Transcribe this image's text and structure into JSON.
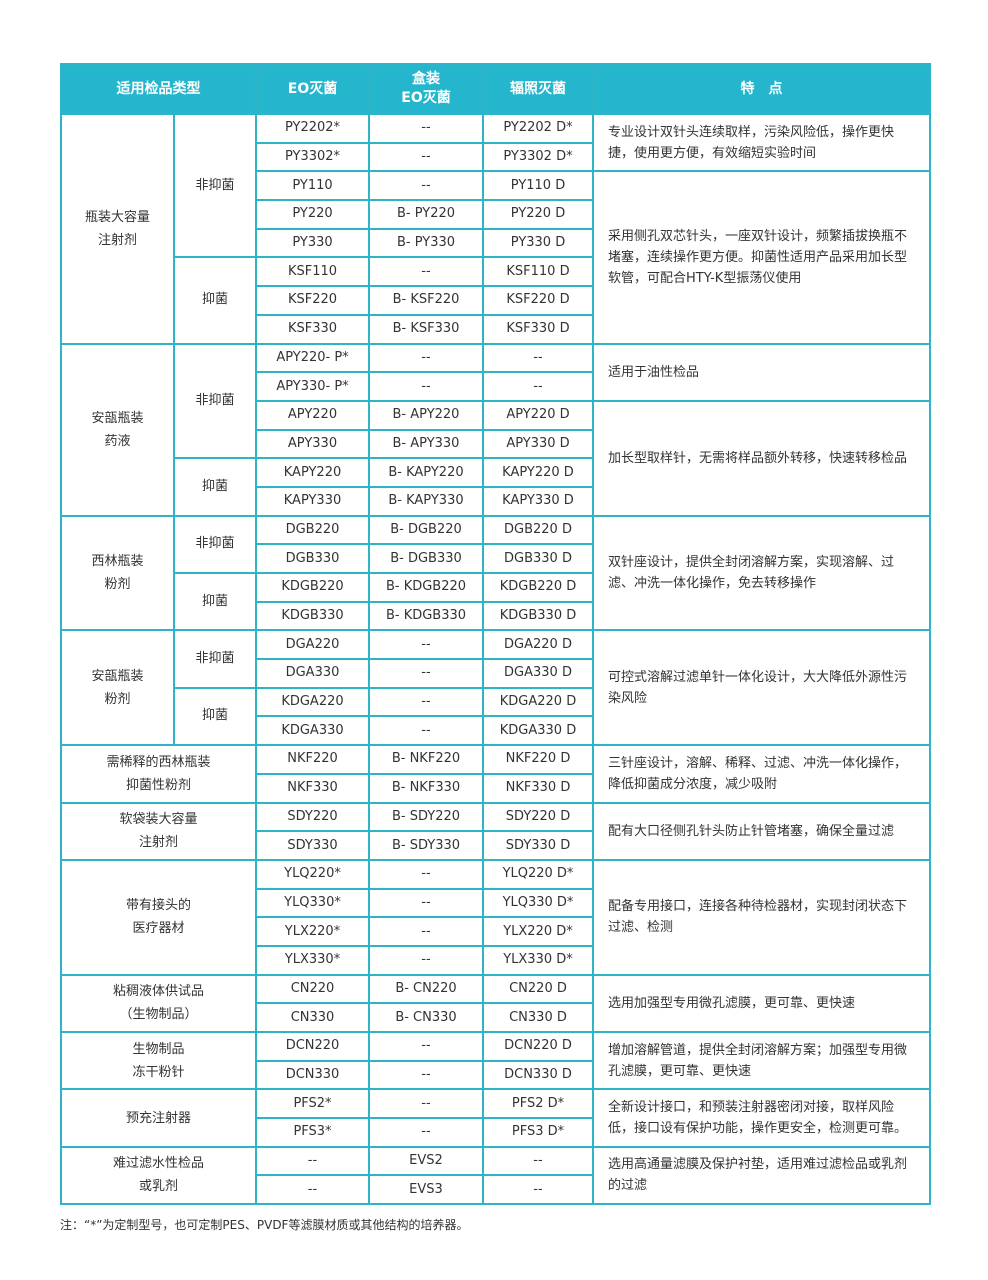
{
  "header": {
    "category": "适用检品类型",
    "eo": "EO灭菌",
    "box_eo_1": "盒装",
    "box_eo_2": "EO灭菌",
    "radiation": "辐照灭菌",
    "features": "特　点"
  },
  "colors": {
    "header_bg": "#25b6cd",
    "border": "#2fb3c6"
  },
  "groups": [
    {
      "category": [
        "瓶装大容量",
        "注射剂"
      ],
      "subs": [
        {
          "label": "非抑菌",
          "span": 5
        },
        {
          "label": "抑菌",
          "span": 3
        }
      ],
      "features": [
        {
          "text": "专业设计双针头连续取样，污染风险低，操作更快捷，使用更方便，有效缩短实验时间",
          "span": 2
        },
        {
          "text": "采用侧孔双芯针头，一座双针设计，频繁插拔换瓶不堵塞，连续操作更方便。抑菌性适用产品采用加长型软管，可配合HTY-K型振荡仪使用",
          "span": 6
        }
      ],
      "rows": [
        [
          "PY2202*",
          "--",
          "PY2202 D*"
        ],
        [
          "PY3302*",
          "--",
          "PY3302 D*"
        ],
        [
          "PY110",
          "--",
          "PY110 D"
        ],
        [
          "PY220",
          "B- PY220",
          "PY220 D"
        ],
        [
          "PY330",
          "B- PY330",
          "PY330 D"
        ],
        [
          "KSF110",
          "--",
          "KSF110 D"
        ],
        [
          "KSF220",
          "B- KSF220",
          "KSF220 D"
        ],
        [
          "KSF330",
          "B- KSF330",
          "KSF330 D"
        ]
      ]
    },
    {
      "category": [
        "安瓿瓶装",
        "药液"
      ],
      "subs": [
        {
          "label": "非抑菌",
          "span": 4
        },
        {
          "label": "抑菌",
          "span": 2
        }
      ],
      "features": [
        {
          "text": "适用于油性检品",
          "span": 2
        },
        {
          "text": "加长型取样针，无需将样品额外转移，快速转移检品",
          "span": 4
        }
      ],
      "rows": [
        [
          "APY220- P*",
          "--",
          "--"
        ],
        [
          "APY330- P*",
          "--",
          "--"
        ],
        [
          "APY220",
          "B- APY220",
          "APY220 D"
        ],
        [
          "APY330",
          "B- APY330",
          "APY330 D"
        ],
        [
          "KAPY220",
          "B- KAPY220",
          "KAPY220 D"
        ],
        [
          "KAPY330",
          "B- KAPY330",
          "KAPY330 D"
        ]
      ]
    },
    {
      "category": [
        "西林瓶装",
        "粉剂"
      ],
      "subs": [
        {
          "label": "非抑菌",
          "span": 2
        },
        {
          "label": "抑菌",
          "span": 2
        }
      ],
      "features": [
        {
          "text": "双针座设计，提供全封闭溶解方案，实现溶解、过滤、冲洗一体化操作，免去转移操作",
          "span": 4
        }
      ],
      "rows": [
        [
          "DGB220",
          "B- DGB220",
          "DGB220 D"
        ],
        [
          "DGB330",
          "B- DGB330",
          "DGB330 D"
        ],
        [
          "KDGB220",
          "B- KDGB220",
          "KDGB220 D"
        ],
        [
          "KDGB330",
          "B- KDGB330",
          "KDGB330 D"
        ]
      ]
    },
    {
      "category": [
        "安瓿瓶装",
        "粉剂"
      ],
      "subs": [
        {
          "label": "非抑菌",
          "span": 2
        },
        {
          "label": "抑菌",
          "span": 2
        }
      ],
      "features": [
        {
          "text": "可控式溶解过滤单针一体化设计，大大降低外源性污染风险",
          "span": 4
        }
      ],
      "rows": [
        [
          "DGA220",
          "--",
          "DGA220 D"
        ],
        [
          "DGA330",
          "--",
          "DGA330 D"
        ],
        [
          "KDGA220",
          "--",
          "KDGA220 D"
        ],
        [
          "KDGA330",
          "--",
          "KDGA330 D"
        ]
      ]
    },
    {
      "category": [
        "需稀释的西林瓶装",
        "抑菌性粉剂"
      ],
      "subs": [],
      "features": [
        {
          "text": "三针座设计，溶解、稀释、过滤、冲洗一体化操作，降低抑菌成分浓度，减少吸附",
          "span": 2
        }
      ],
      "rows": [
        [
          "NKF220",
          "B- NKF220",
          "NKF220 D"
        ],
        [
          "NKF330",
          "B- NKF330",
          "NKF330 D"
        ]
      ]
    },
    {
      "category": [
        "软袋装大容量",
        "注射剂"
      ],
      "subs": [],
      "features": [
        {
          "text": "配有大口径侧孔针头防止针管堵塞，确保全量过滤",
          "span": 2
        }
      ],
      "rows": [
        [
          "SDY220",
          "B- SDY220",
          "SDY220 D"
        ],
        [
          "SDY330",
          "B- SDY330",
          "SDY330 D"
        ]
      ]
    },
    {
      "category": [
        "带有接头的",
        "医疗器材"
      ],
      "subs": [],
      "features": [
        {
          "text": "配备专用接口，连接各种待检器材，实现封闭状态下过滤、检测",
          "span": 4
        }
      ],
      "rows": [
        [
          "YLQ220*",
          "--",
          "YLQ220 D*"
        ],
        [
          "YLQ330*",
          "--",
          "YLQ330 D*"
        ],
        [
          "YLX220*",
          "--",
          "YLX220 D*"
        ],
        [
          "YLX330*",
          "--",
          "YLX330 D*"
        ]
      ]
    },
    {
      "category": [
        "粘稠液体供试品",
        "（生物制品）"
      ],
      "subs": [],
      "features": [
        {
          "text": "选用加强型专用微孔滤膜，更可靠、更快速",
          "span": 2
        }
      ],
      "rows": [
        [
          "CN220",
          "B- CN220",
          "CN220 D"
        ],
        [
          "CN330",
          "B- CN330",
          "CN330 D"
        ]
      ]
    },
    {
      "category": [
        "生物制品",
        "冻干粉针"
      ],
      "subs": [],
      "features": [
        {
          "text": "增加溶解管道，提供全封闭溶解方案；加强型专用微孔滤膜，更可靠、更快速",
          "span": 2
        }
      ],
      "rows": [
        [
          "DCN220",
          "--",
          "DCN220 D"
        ],
        [
          "DCN330",
          "--",
          "DCN330 D"
        ]
      ]
    },
    {
      "category": [
        "预充注射器"
      ],
      "subs": [],
      "features": [
        {
          "text": "全新设计接口，和预装注射器密闭对接，取样风险低，接口设有保护功能，操作更安全，检测更可靠。",
          "span": 2
        }
      ],
      "rows": [
        [
          "PFS2*",
          "--",
          "PFS2 D*"
        ],
        [
          "PFS3*",
          "--",
          "PFS3 D*"
        ]
      ]
    },
    {
      "category": [
        "难过滤水性检品",
        "或乳剂"
      ],
      "subs": [],
      "features": [
        {
          "text": "选用高通量滤膜及保护衬垫，适用难过滤检品或乳剂的过滤",
          "span": 2
        }
      ],
      "rows": [
        [
          "--",
          "EVS2",
          "--"
        ],
        [
          "--",
          "EVS3",
          "--"
        ]
      ]
    }
  ],
  "note": "注：“*”为定制型号，也可定制PES、PVDF等滤膜材质或其他结构的培养器。"
}
